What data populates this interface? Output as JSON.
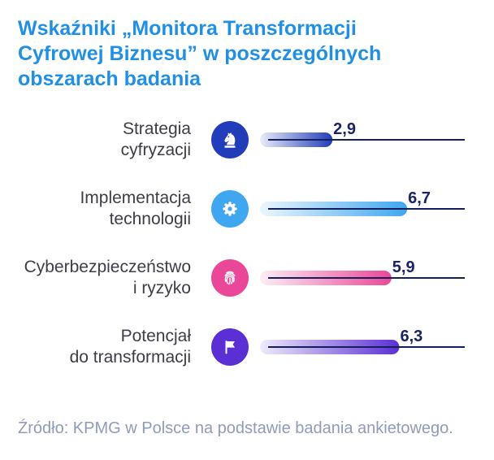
{
  "chart_data": {
    "type": "bar",
    "orientation": "horizontal",
    "title": "Wskaźniki „Monitora Transformacji\nCyfrowej Biznesu” w poszczególnych\nobszarach badania",
    "categories": [
      "Strategia\ncyfryzacji",
      "Implementacja\ntechnologii",
      "Cyberbezpieczeństwo\ni ryzyko",
      "Potencjał\ndo transformacji"
    ],
    "values": [
      2.9,
      6.7,
      5.9,
      6.3
    ],
    "value_labels": [
      "2,9",
      "6,7",
      "5,9",
      "6,3"
    ],
    "xlim": [
      0,
      10
    ],
    "grid": false,
    "source": "Źródło: KPMG w Polsce na podstawie badania ankietowego."
  },
  "icons": [
    "chess-knight-icon",
    "gear-icon",
    "fingerprint-icon",
    "flag-icon"
  ],
  "colors": {
    "title": "#2190e3",
    "category_label": "#3d3d49",
    "value_label": "#1a2464",
    "axis_line": "#14205c",
    "source": "#8e9cb9",
    "series": [
      "#213db9",
      "#3ea7ef",
      "#ea4798",
      "#5a2fd4"
    ]
  }
}
